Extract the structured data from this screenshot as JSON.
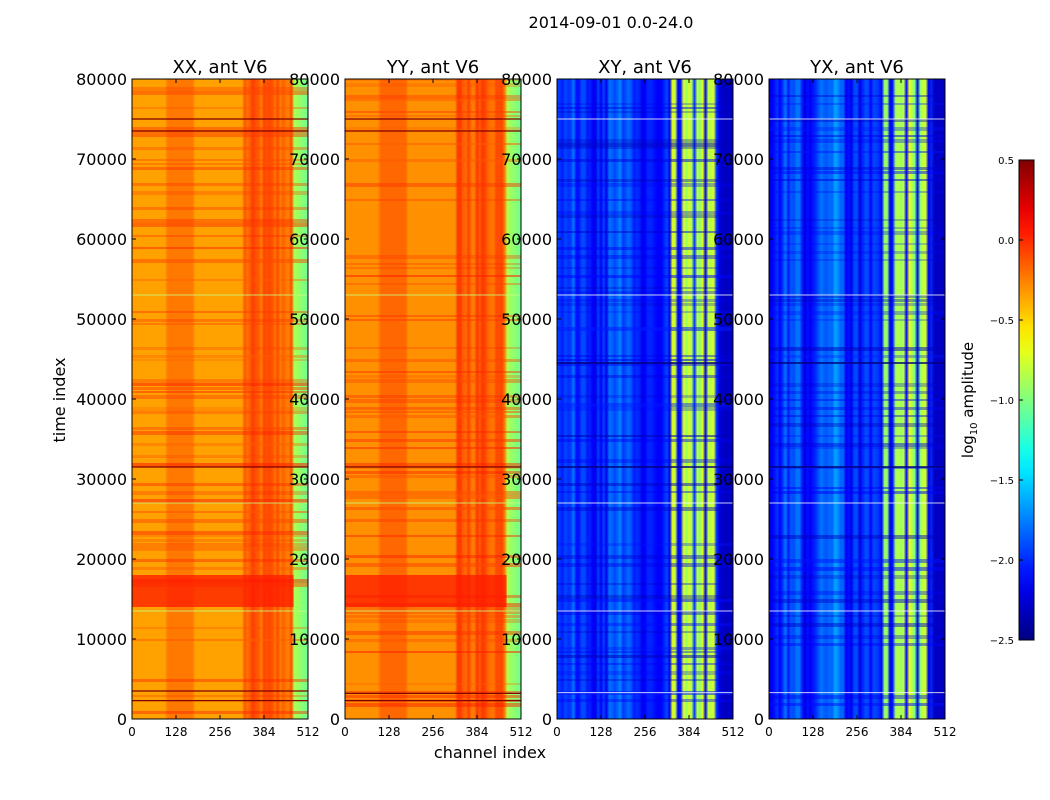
{
  "chart_data": {
    "type": "heatmap",
    "suptitle": "2014-09-01 0.0-24.0",
    "xlabel": "channel index",
    "ylabel": "time index",
    "xlim": [
      0,
      512
    ],
    "ylim": [
      0,
      80000
    ],
    "xticks": [
      0,
      128,
      256,
      384,
      512
    ],
    "yticks": [
      0,
      10000,
      20000,
      30000,
      40000,
      50000,
      60000,
      70000,
      80000
    ],
    "panels": [
      {
        "title": "XX, ant V6",
        "base": -0.35,
        "hot_bands": [
          [
            326,
            470
          ]
        ],
        "dark_time_lines": [
          2300,
          3500,
          31500,
          73500,
          75000
        ],
        "bright_time_lines": [
          13500,
          27000,
          53000
        ]
      },
      {
        "title": "YY, ant V6",
        "base": -0.3,
        "hot_bands": [
          [
            326,
            470
          ]
        ],
        "dark_time_lines": [
          2300,
          3200,
          31500,
          73500,
          75000
        ],
        "bright_time_lines": [
          13500,
          27000,
          53000
        ]
      },
      {
        "title": "XY, ant V6",
        "base": -2.05,
        "hot_bands": [
          [
            330,
            350
          ],
          [
            365,
            395
          ],
          [
            405,
            425
          ],
          [
            440,
            460
          ]
        ],
        "dark_time_lines": [
          44500,
          31500
        ],
        "bright_time_lines": [
          3300,
          13500,
          27000,
          53000,
          75000
        ]
      },
      {
        "title": "YX, ant V6",
        "base": -2.05,
        "hot_bands": [
          [
            330,
            350
          ],
          [
            365,
            395
          ],
          [
            405,
            425
          ],
          [
            440,
            460
          ]
        ],
        "dark_time_lines": [
          44500,
          31500
        ],
        "bright_time_lines": [
          3300,
          13500,
          27000,
          53000,
          75000
        ]
      }
    ],
    "colorbar": {
      "label": "log10 amplitude",
      "label_base": "log",
      "label_sub": "10",
      "label_rest": " amplitude",
      "range": [
        -2.5,
        0.5
      ],
      "colormap": "jet",
      "ticks": [
        0.5,
        0.0,
        -0.5,
        -1.0,
        -1.5,
        -2.0,
        -2.5
      ],
      "tick_labels": [
        "0.5",
        "0.0",
        "−0.5",
        "−1.0",
        "−1.5",
        "−2.0",
        "−2.5"
      ]
    }
  }
}
